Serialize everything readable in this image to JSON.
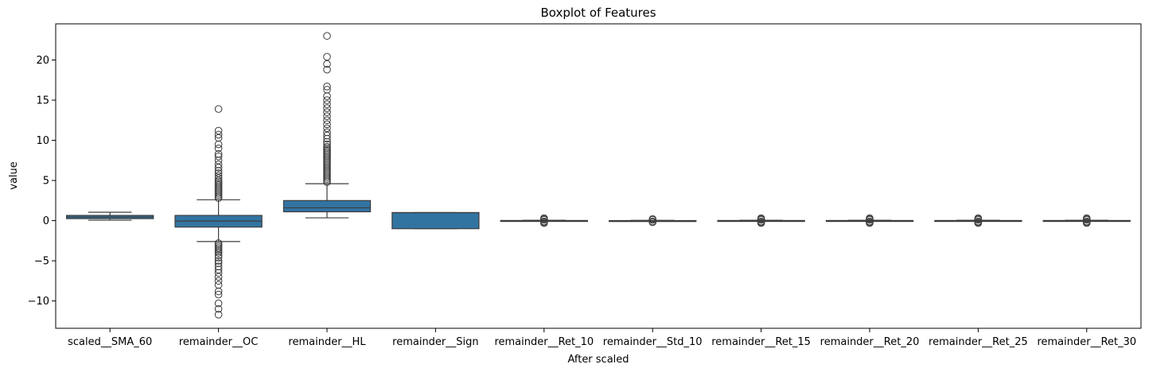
{
  "chart_data": {
    "type": "boxplot",
    "title": "Boxplot of Features",
    "xlabel": "After scaled",
    "ylabel": "value",
    "ylim": [
      -13.4,
      24.5
    ],
    "yticks": [
      -10,
      -5,
      0,
      5,
      10,
      15,
      20
    ],
    "grid": false,
    "box_color": "#3274a1",
    "line_color": "#3d3d3d",
    "categories": [
      "scaled__SMA_60",
      "remainder__OC",
      "remainder__HL",
      "remainder__Sign",
      "remainder__Ret_10",
      "remainder__Std_10",
      "remainder__Ret_15",
      "remainder__Ret_20",
      "remainder__Ret_25",
      "remainder__Ret_30"
    ],
    "boxes": [
      {
        "whislo": 0.05,
        "q1": 0.25,
        "med": 0.45,
        "q3": 0.65,
        "whishi": 1.05,
        "fliers": []
      },
      {
        "whislo": -2.6,
        "q1": -0.8,
        "med": -0.05,
        "q3": 0.65,
        "whishi": 2.6,
        "fliers": [
          2.8,
          3.0,
          3.2,
          3.4,
          3.6,
          3.8,
          4.0,
          4.2,
          4.4,
          4.6,
          4.8,
          5.0,
          5.3,
          5.6,
          5.9,
          6.2,
          6.6,
          7.0,
          7.5,
          8.0,
          8.3,
          9.0,
          9.5,
          10.3,
          10.7,
          11.2,
          13.9,
          -2.8,
          -3.0,
          -3.2,
          -3.4,
          -3.6,
          -3.8,
          -4.0,
          -4.3,
          -4.6,
          -5.0,
          -5.3,
          -5.7,
          -6.1,
          -6.5,
          -7.0,
          -7.5,
          -8.0,
          -8.8,
          -9.2,
          -10.3,
          -11.0,
          -11.7
        ]
      },
      {
        "whislo": 0.35,
        "q1": 1.1,
        "med": 1.6,
        "q3": 2.5,
        "whishi": 4.6,
        "fliers": [
          4.8,
          5.0,
          5.2,
          5.4,
          5.6,
          5.8,
          6.0,
          6.2,
          6.4,
          6.6,
          6.8,
          7.0,
          7.2,
          7.4,
          7.6,
          7.8,
          8.0,
          8.2,
          8.4,
          8.6,
          8.8,
          9.0,
          9.2,
          9.5,
          9.8,
          10.2,
          10.6,
          11.0,
          11.5,
          12.0,
          12.5,
          13.0,
          13.5,
          14.0,
          14.5,
          15.0,
          15.5,
          16.3,
          16.7,
          18.8,
          19.5,
          20.4,
          23.0
        ]
      },
      {
        "whislo": -1.0,
        "q1": -1.0,
        "med": 1.0,
        "q3": 1.0,
        "whishi": 1.0,
        "fliers": []
      },
      {
        "whislo": -0.05,
        "q1": -0.02,
        "med": 0.0,
        "q3": 0.02,
        "whishi": 0.05,
        "fliers": [
          -0.3,
          -0.2,
          -0.1,
          0.1,
          0.2,
          0.3
        ]
      },
      {
        "whislo": -0.03,
        "q1": -0.01,
        "med": 0.0,
        "q3": 0.01,
        "whishi": 0.03,
        "fliers": [
          -0.2,
          -0.1,
          0.1,
          0.2
        ]
      },
      {
        "whislo": -0.05,
        "q1": -0.02,
        "med": 0.0,
        "q3": 0.02,
        "whishi": 0.05,
        "fliers": [
          -0.3,
          -0.2,
          -0.1,
          0.1,
          0.2,
          0.3
        ]
      },
      {
        "whislo": -0.05,
        "q1": -0.02,
        "med": 0.0,
        "q3": 0.02,
        "whishi": 0.05,
        "fliers": [
          -0.3,
          -0.2,
          -0.1,
          0.1,
          0.2,
          0.3
        ]
      },
      {
        "whislo": -0.05,
        "q1": -0.02,
        "med": 0.0,
        "q3": 0.02,
        "whishi": 0.05,
        "fliers": [
          -0.3,
          -0.2,
          -0.1,
          0.1,
          0.2,
          0.3
        ]
      },
      {
        "whislo": -0.05,
        "q1": -0.02,
        "med": 0.0,
        "q3": 0.02,
        "whishi": 0.05,
        "fliers": [
          -0.3,
          -0.2,
          -0.1,
          0.1,
          0.2,
          0.3
        ]
      }
    ]
  }
}
